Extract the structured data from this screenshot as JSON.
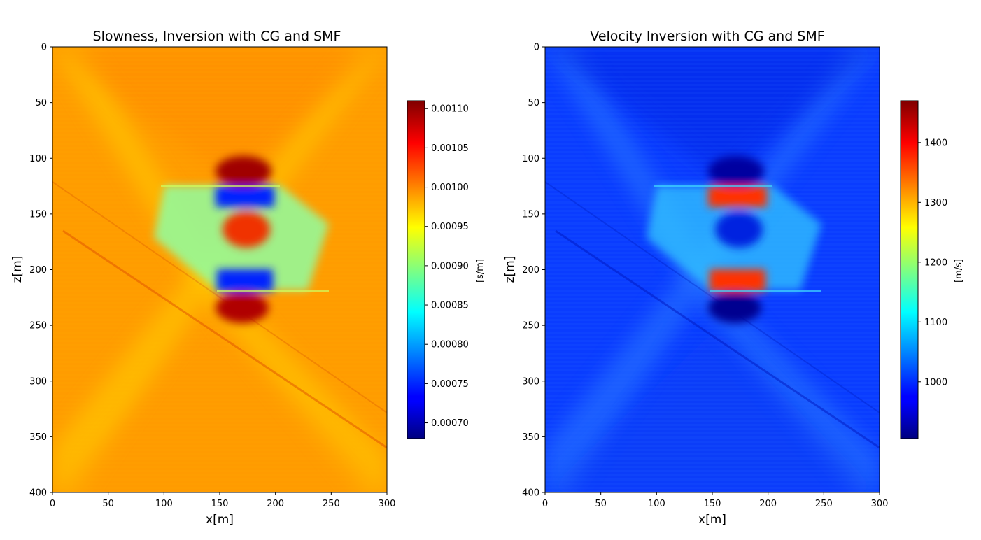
{
  "chart_data": [
    {
      "type": "heatmap",
      "title": "Slowness, Inversion with CG and SMF",
      "xlabel": "x[m]",
      "ylabel": "z[m]",
      "xlim": [
        0,
        300
      ],
      "ylim": [
        400,
        0
      ],
      "x_ticks": [
        "0",
        "50",
        "100",
        "150",
        "200",
        "250",
        "300"
      ],
      "y_ticks": [
        "0",
        "50",
        "100",
        "150",
        "200",
        "250",
        "300",
        "350",
        "400"
      ],
      "colormap": "jet",
      "colorbar": {
        "label": "[s/m]",
        "range": [
          0.00068,
          0.00111
        ],
        "ticks": [
          "0.00070",
          "0.00075",
          "0.00080",
          "0.00085",
          "0.00090",
          "0.00095",
          "0.00100",
          "0.00105",
          "0.00110"
        ]
      },
      "background_value": 0.00099,
      "features": [
        {
          "x": 172,
          "z": 110,
          "value": 0.0011
        },
        {
          "x": 172,
          "z": 137,
          "value": 0.00072
        },
        {
          "x": 172,
          "z": 165,
          "value": 0.00102
        },
        {
          "x": 172,
          "z": 207,
          "value": 0.00072
        },
        {
          "x": 172,
          "z": 235,
          "value": 0.00108
        }
      ]
    },
    {
      "type": "heatmap",
      "title": "Velocity Inversion with CG and SMF",
      "xlabel": "x[m]",
      "ylabel": "z[m]",
      "xlim": [
        0,
        300
      ],
      "ylim": [
        400,
        0
      ],
      "x_ticks": [
        "0",
        "50",
        "100",
        "150",
        "200",
        "250",
        "300"
      ],
      "y_ticks": [
        "0",
        "50",
        "100",
        "150",
        "200",
        "250",
        "300",
        "350",
        "400"
      ],
      "colormap": "jet",
      "colorbar": {
        "label": "[m/s]",
        "range": [
          905,
          1470
        ],
        "ticks": [
          "1000",
          "1100",
          "1200",
          "1300",
          "1400"
        ]
      },
      "background_value": 1010,
      "features": [
        {
          "x": 172,
          "z": 110,
          "value": 910
        },
        {
          "x": 172,
          "z": 137,
          "value": 1420
        },
        {
          "x": 172,
          "z": 165,
          "value": 960
        },
        {
          "x": 172,
          "z": 207,
          "value": 1420
        },
        {
          "x": 172,
          "z": 235,
          "value": 925
        }
      ]
    }
  ]
}
